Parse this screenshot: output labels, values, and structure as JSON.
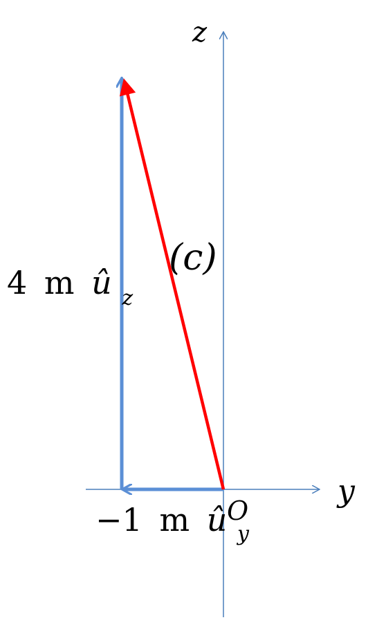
{
  "axes": {
    "y_label": "y",
    "z_label": "z",
    "origin_label": "O",
    "color": "#4a7ebb"
  },
  "vectors": {
    "uy_component": {
      "coefficient": "−1",
      "unit": "m",
      "unit_vector": "û",
      "subscript": "y",
      "color": "#5b8fd6"
    },
    "uz_component": {
      "coefficient": "4",
      "unit": "m",
      "unit_vector": "û",
      "subscript": "z",
      "color": "#5b8fd6"
    },
    "resultant": {
      "label": "(c)",
      "color": "#ff0000"
    }
  }
}
